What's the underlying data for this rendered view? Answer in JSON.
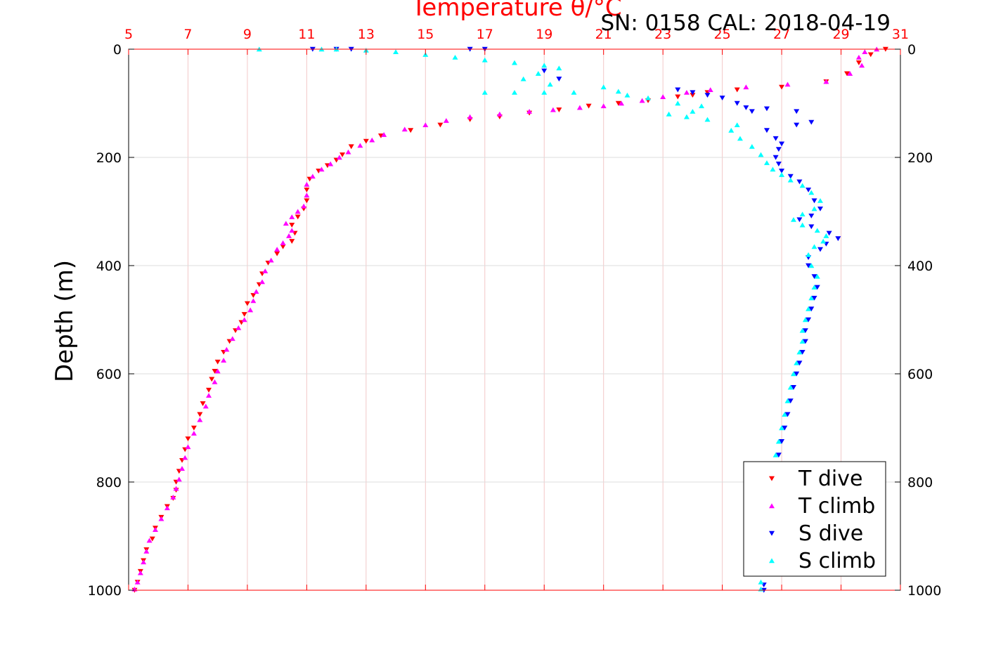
{
  "chart_data": {
    "type": "scatter",
    "title": "Temperature θ/°C",
    "subtitle": "SN: 0158  CAL: 2018-04-19",
    "ylabel": "Depth (m)",
    "xlabel": "",
    "xlim": [
      5,
      31
    ],
    "ylim": [
      0,
      1000
    ],
    "y_reversed": true,
    "x_ticks": [
      5,
      7,
      9,
      11,
      13,
      15,
      17,
      19,
      21,
      23,
      25,
      27,
      29,
      31
    ],
    "y_ticks": [
      0,
      200,
      400,
      600,
      800,
      1000
    ],
    "x_tick_labels": [
      "5",
      "7",
      "9",
      "11",
      "13",
      "15",
      "17",
      "19",
      "21",
      "23",
      "25",
      "27",
      "29",
      "31"
    ],
    "y_tick_labels": [
      "0",
      "200",
      "400",
      "600",
      "800",
      "1000"
    ],
    "grid": true,
    "legend_position": "bottom-right",
    "colors": {
      "title": "#ff0000",
      "top_axis": "#ff0000",
      "grid": "#e0e0e0"
    },
    "series": [
      {
        "name": "T dive",
        "color": "#ff0000",
        "marker": "triangle-down",
        "points": [
          [
            30.5,
            0
          ],
          [
            30.0,
            10
          ],
          [
            29.6,
            25
          ],
          [
            29.2,
            45
          ],
          [
            28.5,
            60
          ],
          [
            27.0,
            70
          ],
          [
            25.5,
            75
          ],
          [
            24.5,
            80
          ],
          [
            24.0,
            85
          ],
          [
            23.5,
            88
          ],
          [
            22.5,
            95
          ],
          [
            21.5,
            100
          ],
          [
            20.5,
            105
          ],
          [
            19.5,
            112
          ],
          [
            18.5,
            118
          ],
          [
            17.5,
            125
          ],
          [
            16.5,
            130
          ],
          [
            15.5,
            140
          ],
          [
            14.5,
            150
          ],
          [
            13.5,
            160
          ],
          [
            13.0,
            170
          ],
          [
            12.5,
            180
          ],
          [
            12.2,
            195
          ],
          [
            12.0,
            205
          ],
          [
            11.7,
            215
          ],
          [
            11.4,
            225
          ],
          [
            11.1,
            240
          ],
          [
            11.0,
            260
          ],
          [
            11.0,
            280
          ],
          [
            10.9,
            295
          ],
          [
            10.7,
            310
          ],
          [
            10.5,
            325
          ],
          [
            10.6,
            340
          ],
          [
            10.5,
            355
          ],
          [
            10.2,
            365
          ],
          [
            10.0,
            378
          ],
          [
            9.7,
            395
          ],
          [
            9.5,
            415
          ],
          [
            9.4,
            435
          ],
          [
            9.2,
            455
          ],
          [
            9.0,
            470
          ],
          [
            8.9,
            490
          ],
          [
            8.8,
            505
          ],
          [
            8.6,
            520
          ],
          [
            8.4,
            540
          ],
          [
            8.2,
            560
          ],
          [
            8.0,
            578
          ],
          [
            7.9,
            595
          ],
          [
            7.8,
            610
          ],
          [
            7.7,
            630
          ],
          [
            7.5,
            655
          ],
          [
            7.4,
            675
          ],
          [
            7.2,
            700
          ],
          [
            7.0,
            720
          ],
          [
            6.9,
            740
          ],
          [
            6.8,
            760
          ],
          [
            6.7,
            780
          ],
          [
            6.6,
            800
          ],
          [
            6.6,
            815
          ],
          [
            6.5,
            830
          ],
          [
            6.3,
            845
          ],
          [
            6.1,
            865
          ],
          [
            5.9,
            885
          ],
          [
            5.8,
            905
          ],
          [
            5.6,
            925
          ],
          [
            5.5,
            945
          ],
          [
            5.4,
            965
          ],
          [
            5.3,
            985
          ],
          [
            5.2,
            1000
          ]
        ]
      },
      {
        "name": "T climb",
        "color": "#ff00ff",
        "marker": "triangle-up",
        "points": [
          [
            30.2,
            0
          ],
          [
            29.8,
            5
          ],
          [
            29.6,
            15
          ],
          [
            29.7,
            30
          ],
          [
            29.3,
            45
          ],
          [
            28.5,
            60
          ],
          [
            27.2,
            65
          ],
          [
            25.8,
            70
          ],
          [
            24.6,
            75
          ],
          [
            23.8,
            80
          ],
          [
            23.0,
            88
          ],
          [
            22.3,
            95
          ],
          [
            21.6,
            100
          ],
          [
            21.0,
            105
          ],
          [
            20.2,
            108
          ],
          [
            19.3,
            112
          ],
          [
            18.5,
            115
          ],
          [
            17.5,
            120
          ],
          [
            16.5,
            125
          ],
          [
            15.7,
            132
          ],
          [
            15.0,
            140
          ],
          [
            14.3,
            148
          ],
          [
            13.6,
            158
          ],
          [
            13.2,
            168
          ],
          [
            12.8,
            178
          ],
          [
            12.4,
            190
          ],
          [
            12.1,
            200
          ],
          [
            11.8,
            212
          ],
          [
            11.5,
            222
          ],
          [
            11.2,
            235
          ],
          [
            11.0,
            250
          ],
          [
            11.0,
            270
          ],
          [
            10.9,
            290
          ],
          [
            10.7,
            300
          ],
          [
            10.5,
            310
          ],
          [
            10.3,
            322
          ],
          [
            10.5,
            335
          ],
          [
            10.4,
            345
          ],
          [
            10.2,
            358
          ],
          [
            10.0,
            370
          ],
          [
            9.8,
            390
          ],
          [
            9.6,
            410
          ],
          [
            9.5,
            430
          ],
          [
            9.3,
            448
          ],
          [
            9.2,
            465
          ],
          [
            9.1,
            482
          ],
          [
            8.9,
            500
          ],
          [
            8.7,
            515
          ],
          [
            8.5,
            535
          ],
          [
            8.3,
            555
          ],
          [
            8.2,
            575
          ],
          [
            8.0,
            595
          ],
          [
            7.9,
            615
          ],
          [
            7.7,
            640
          ],
          [
            7.6,
            660
          ],
          [
            7.4,
            685
          ],
          [
            7.2,
            710
          ],
          [
            7.0,
            735
          ],
          [
            6.9,
            755
          ],
          [
            6.8,
            775
          ],
          [
            6.7,
            795
          ],
          [
            6.6,
            812
          ],
          [
            6.5,
            828
          ],
          [
            6.3,
            848
          ],
          [
            6.1,
            868
          ],
          [
            5.9,
            888
          ],
          [
            5.7,
            908
          ],
          [
            5.6,
            928
          ],
          [
            5.5,
            948
          ],
          [
            5.4,
            968
          ],
          [
            5.3,
            985
          ],
          [
            5.2,
            998
          ]
        ]
      },
      {
        "name": "S dive",
        "color": "#0000ff",
        "marker": "triangle-down",
        "points": [
          [
            11.2,
            0
          ],
          [
            12.0,
            0
          ],
          [
            12.5,
            0
          ],
          [
            16.5,
            0
          ],
          [
            17.0,
            0
          ],
          [
            19.0,
            40
          ],
          [
            19.5,
            55
          ],
          [
            23.5,
            75
          ],
          [
            24.0,
            80
          ],
          [
            24.5,
            85
          ],
          [
            25.0,
            90
          ],
          [
            25.5,
            100
          ],
          [
            25.8,
            108
          ],
          [
            26.0,
            115
          ],
          [
            26.5,
            110
          ],
          [
            27.5,
            115
          ],
          [
            28.0,
            135
          ],
          [
            27.5,
            140
          ],
          [
            26.5,
            150
          ],
          [
            26.8,
            165
          ],
          [
            27.0,
            175
          ],
          [
            26.9,
            185
          ],
          [
            26.8,
            200
          ],
          [
            26.9,
            212
          ],
          [
            27.0,
            225
          ],
          [
            27.3,
            235
          ],
          [
            27.6,
            245
          ],
          [
            27.9,
            260
          ],
          [
            28.1,
            280
          ],
          [
            28.3,
            295
          ],
          [
            28.0,
            308
          ],
          [
            27.6,
            315
          ],
          [
            28.0,
            328
          ],
          [
            28.6,
            340
          ],
          [
            28.9,
            350
          ],
          [
            28.5,
            360
          ],
          [
            28.3,
            370
          ],
          [
            27.9,
            385
          ],
          [
            27.9,
            400
          ],
          [
            28.1,
            420
          ],
          [
            28.2,
            440
          ],
          [
            28.1,
            460
          ],
          [
            28.0,
            480
          ],
          [
            27.9,
            500
          ],
          [
            27.8,
            520
          ],
          [
            27.8,
            540
          ],
          [
            27.7,
            560
          ],
          [
            27.6,
            580
          ],
          [
            27.5,
            600
          ],
          [
            27.4,
            625
          ],
          [
            27.3,
            650
          ],
          [
            27.2,
            675
          ],
          [
            27.1,
            700
          ],
          [
            27.0,
            725
          ],
          [
            26.9,
            750
          ],
          [
            26.8,
            780
          ],
          [
            26.7,
            810
          ],
          [
            26.7,
            840
          ],
          [
            26.6,
            870
          ],
          [
            26.5,
            900
          ],
          [
            26.5,
            930
          ],
          [
            26.5,
            960
          ],
          [
            26.4,
            990
          ],
          [
            26.4,
            1000
          ]
        ]
      },
      {
        "name": "S climb",
        "color": "#00ffff",
        "marker": "triangle-up",
        "points": [
          [
            9.4,
            0
          ],
          [
            11.5,
            0
          ],
          [
            12.0,
            0
          ],
          [
            13.0,
            2
          ],
          [
            14.0,
            5
          ],
          [
            15.0,
            10
          ],
          [
            16.0,
            15
          ],
          [
            17.0,
            20
          ],
          [
            18.0,
            25
          ],
          [
            19.0,
            30
          ],
          [
            19.5,
            35
          ],
          [
            18.8,
            45
          ],
          [
            18.3,
            55
          ],
          [
            19.2,
            65
          ],
          [
            21.0,
            70
          ],
          [
            21.5,
            78
          ],
          [
            20.0,
            80
          ],
          [
            19.0,
            80
          ],
          [
            18.0,
            80
          ],
          [
            17.0,
            80
          ],
          [
            21.8,
            85
          ],
          [
            22.5,
            90
          ],
          [
            23.5,
            100
          ],
          [
            24.3,
            105
          ],
          [
            24.0,
            115
          ],
          [
            23.2,
            120
          ],
          [
            23.8,
            125
          ],
          [
            24.5,
            130
          ],
          [
            25.5,
            140
          ],
          [
            25.3,
            150
          ],
          [
            25.6,
            165
          ],
          [
            26.0,
            180
          ],
          [
            26.3,
            195
          ],
          [
            26.5,
            210
          ],
          [
            26.7,
            222
          ],
          [
            27.0,
            232
          ],
          [
            27.3,
            242
          ],
          [
            27.7,
            252
          ],
          [
            28.0,
            265
          ],
          [
            28.3,
            280
          ],
          [
            28.1,
            295
          ],
          [
            27.7,
            305
          ],
          [
            27.4,
            315
          ],
          [
            27.7,
            325
          ],
          [
            28.2,
            335
          ],
          [
            28.5,
            345
          ],
          [
            28.4,
            355
          ],
          [
            28.1,
            365
          ],
          [
            27.9,
            380
          ],
          [
            28.0,
            400
          ],
          [
            28.2,
            420
          ],
          [
            28.1,
            440
          ],
          [
            28.0,
            460
          ],
          [
            27.9,
            480
          ],
          [
            27.8,
            500
          ],
          [
            27.7,
            520
          ],
          [
            27.7,
            540
          ],
          [
            27.6,
            560
          ],
          [
            27.5,
            580
          ],
          [
            27.4,
            600
          ],
          [
            27.3,
            625
          ],
          [
            27.2,
            650
          ],
          [
            27.1,
            675
          ],
          [
            27.0,
            700
          ],
          [
            26.9,
            725
          ],
          [
            26.8,
            750
          ],
          [
            26.7,
            780
          ],
          [
            26.6,
            810
          ],
          [
            26.5,
            840
          ],
          [
            26.5,
            870
          ],
          [
            26.4,
            900
          ],
          [
            26.4,
            930
          ],
          [
            26.4,
            960
          ],
          [
            26.3,
            985
          ],
          [
            26.3,
            998
          ]
        ]
      }
    ]
  }
}
